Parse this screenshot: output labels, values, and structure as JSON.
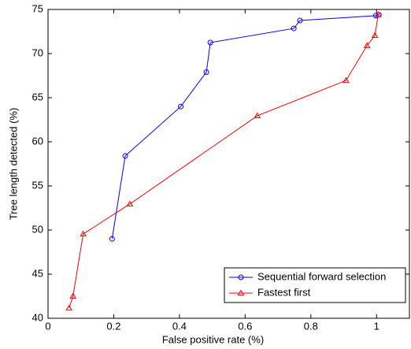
{
  "chart_data": {
    "type": "line",
    "xlabel": "False positive rate (%)",
    "ylabel": "Tree length detected (%)",
    "xlim": [
      0,
      1.1
    ],
    "xticks": [
      0,
      0.2,
      0.4,
      0.6,
      0.8,
      1
    ],
    "ylim": [
      40,
      75
    ],
    "yticks": [
      40,
      45,
      50,
      55,
      60,
      65,
      70,
      75
    ],
    "legend": "lower-right",
    "series": [
      {
        "name": "Sequential forward selection",
        "color": "#0000ff",
        "marker": "circle",
        "x": [
          0.195,
          0.235,
          0.404,
          0.482,
          0.494,
          0.748,
          0.767,
          0.998,
          1.007
        ],
        "values": [
          49,
          58.4,
          64,
          67.9,
          71.25,
          72.85,
          73.75,
          74.3,
          74.4
        ]
      },
      {
        "name": "Fastest first",
        "color": "#ff0000",
        "marker": "triangle",
        "x": [
          0.064,
          0.076,
          0.107,
          0.249,
          0.637,
          0.907,
          0.971,
          0.995,
          1.005
        ],
        "values": [
          41.15,
          42.5,
          49.55,
          52.95,
          62.95,
          66.95,
          70.9,
          72.05,
          74.4
        ]
      }
    ]
  }
}
